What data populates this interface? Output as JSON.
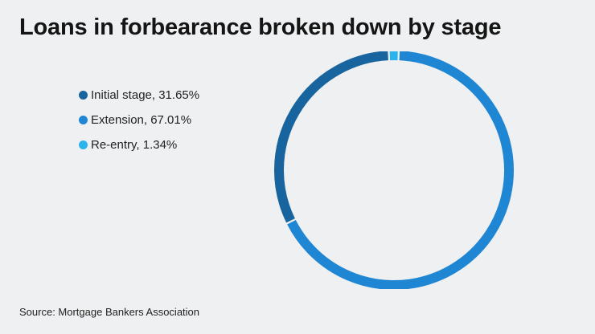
{
  "title": "Loans in forbearance broken down by stage",
  "source": "Source: Mortgage Bankers Association",
  "chart_data": {
    "type": "pie",
    "style": "donut",
    "title": "Loans in forbearance broken down by stage",
    "legend_position": "left",
    "slices": [
      {
        "label": "Initial stage, 31.65%",
        "name": "Initial stage",
        "value": 31.65,
        "color": "#17649e"
      },
      {
        "label": "Extension, 67.01%",
        "name": "Extension",
        "value": 67.01,
        "color": "#1f86d4"
      },
      {
        "label": "Re-entry, 1.34%",
        "name": "Re-entry",
        "value": 1.34,
        "color": "#2bb3ee"
      }
    ]
  }
}
